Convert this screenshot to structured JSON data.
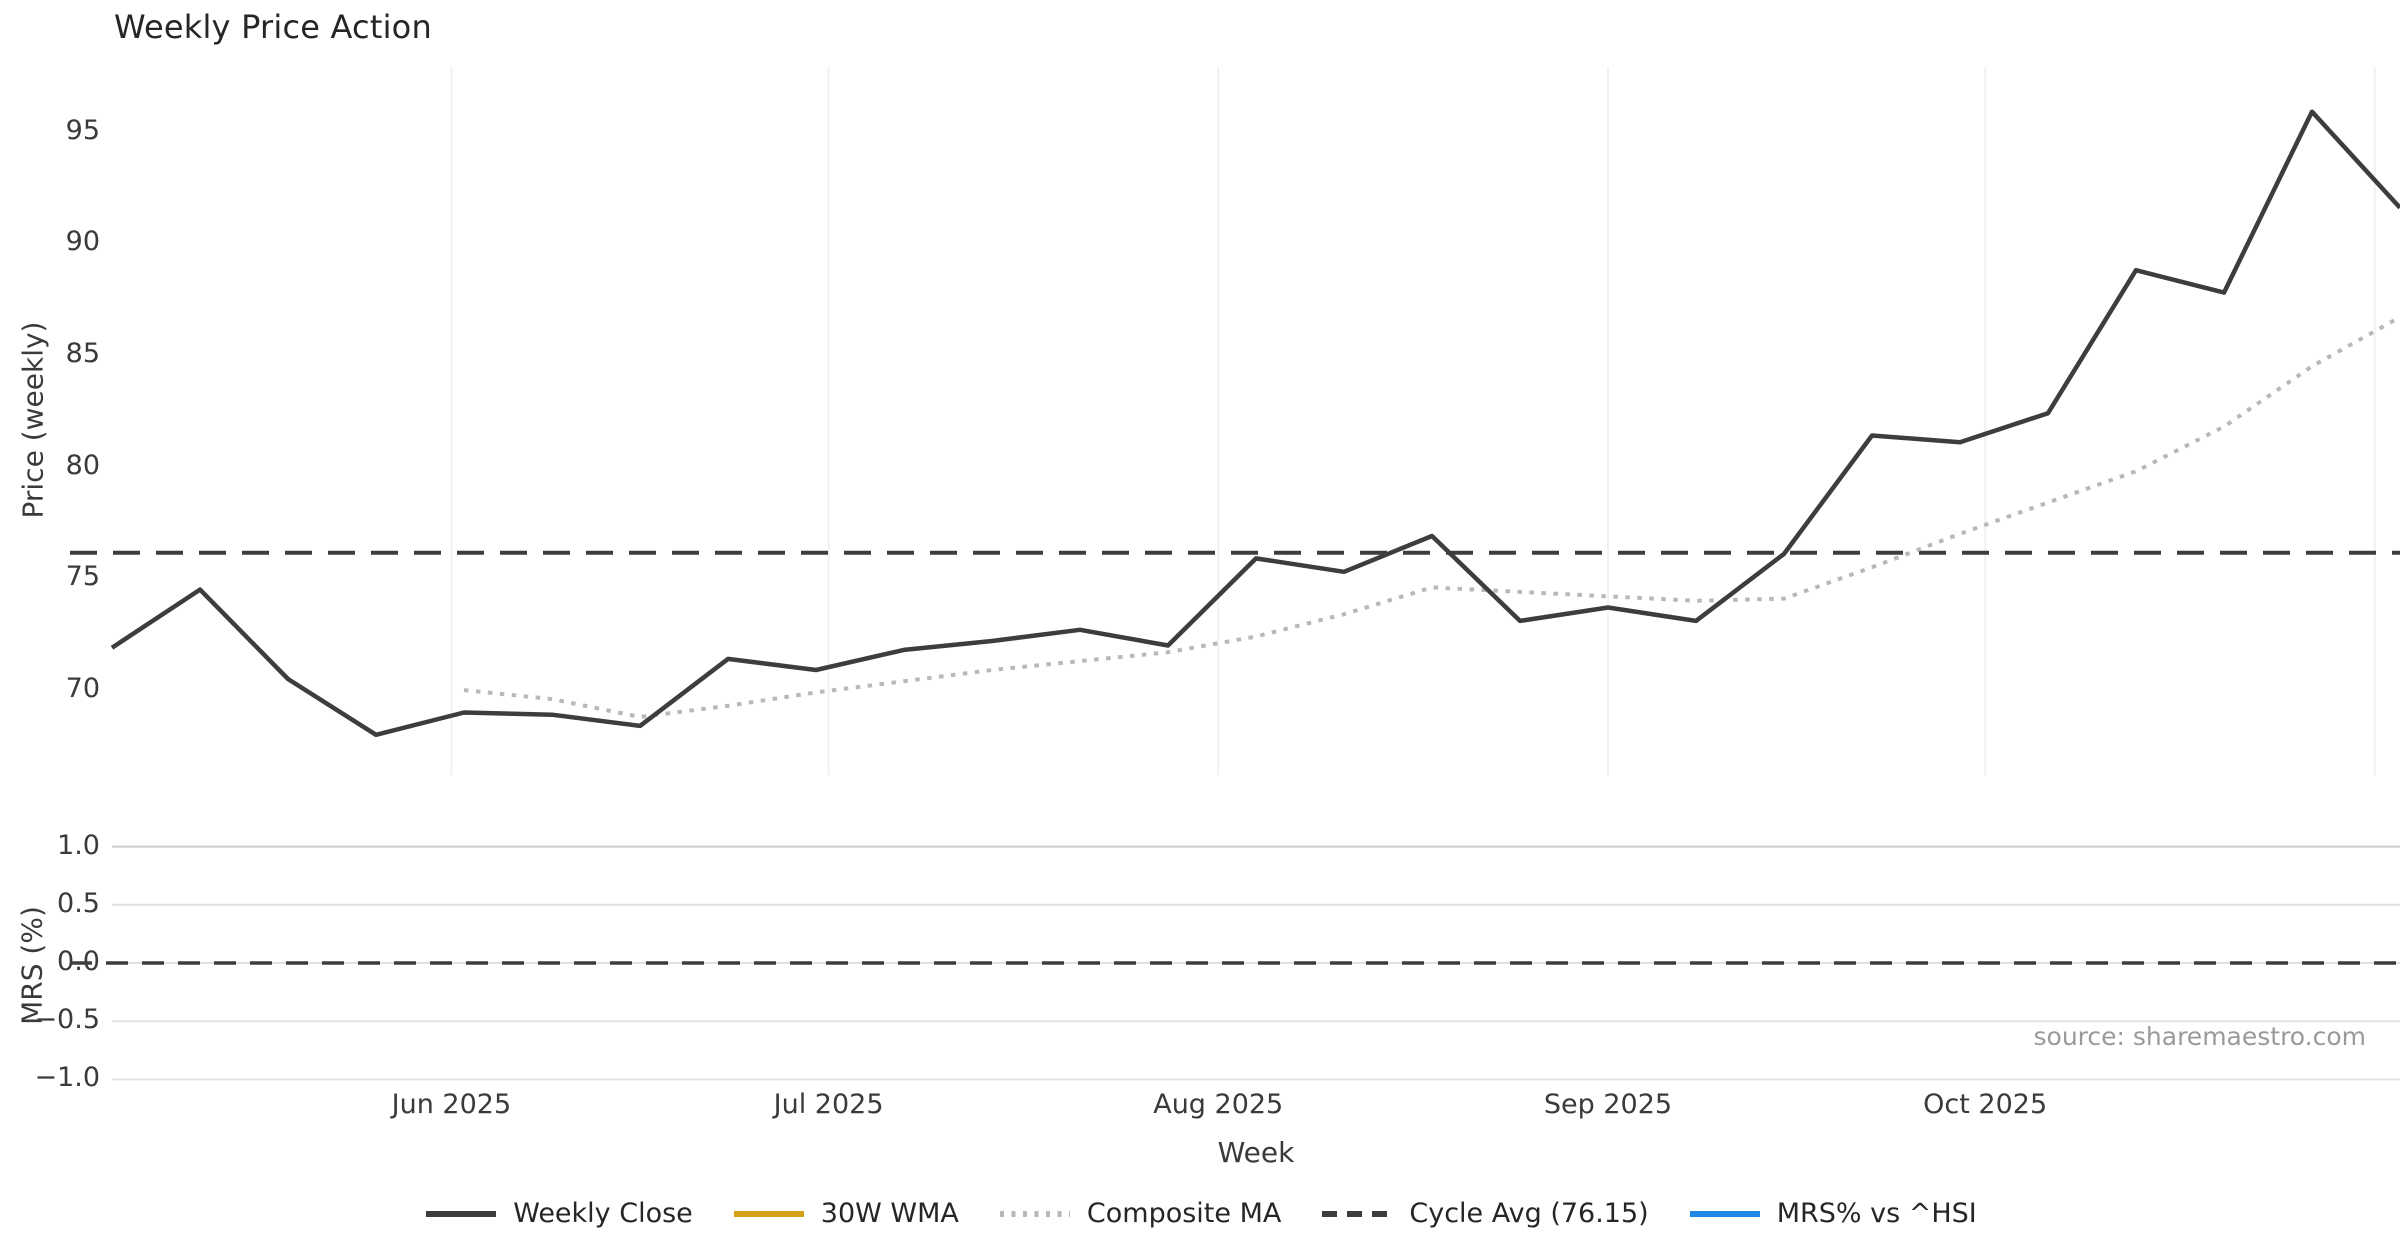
{
  "title": "Weekly Price Action",
  "source_note": "source: sharemaestro.com",
  "colors": {
    "weekly_close": "#3d3d3d",
    "wma_30w": "#d4a017",
    "composite_ma": "#b8b8b8",
    "cycle_avg": "#3d3d3d",
    "mrs_line": "#1e88e5",
    "grid_vertical": "#eef1f6",
    "grid_horizontal": "#dfe2e7",
    "grid_horizontal_top": "#c9ccd1",
    "zero_dash": "#3d3d3d",
    "title_text": "#262626",
    "tick_text": "#3a3a3a",
    "source_text": "#9a9a9a"
  },
  "chart_data": [
    {
      "type": "line",
      "panel": "price",
      "title": "Weekly Price Action",
      "ylabel": "Price (weekly)",
      "xlabel": "Week",
      "grid": "vertical-months-only",
      "ylim": [
        66.2,
        97.9
      ],
      "y_ticks": [
        "70",
        "75",
        "80",
        "85",
        "90",
        "95"
      ],
      "y_tick_values": [
        70,
        75,
        80,
        85,
        90,
        95
      ],
      "x_axis": {
        "unit": "weeks",
        "n_points": 27,
        "tick_labels": [
          {
            "label": "Jun 2025",
            "week": 3.857
          },
          {
            "label": "Jul 2025",
            "week": 8.143
          },
          {
            "label": "Aug 2025",
            "week": 12.571
          },
          {
            "label": "Sep 2025",
            "week": 17.0
          },
          {
            "label": "Oct 2025",
            "week": 21.286
          }
        ],
        "gridline_weeks": [
          3.857,
          8.143,
          12.571,
          17.0,
          21.286,
          25.714
        ]
      },
      "series": [
        {
          "name": "Weekly Close",
          "style": "solid",
          "color": "#3d3d3d",
          "values": [
            71.9,
            74.5,
            70.5,
            68.0,
            69.0,
            68.9,
            68.4,
            71.4,
            70.9,
            71.8,
            72.2,
            72.7,
            72.0,
            75.9,
            75.3,
            76.9,
            73.1,
            73.7,
            73.1,
            76.1,
            81.4,
            81.1,
            82.4,
            88.8,
            87.8,
            95.9,
            91.6
          ]
        },
        {
          "name": "30W WMA",
          "style": "solid",
          "color": "#d4a017",
          "values": []
        },
        {
          "name": "Composite MA",
          "style": "dotted",
          "color": "#b8b8b8",
          "values": [
            null,
            null,
            null,
            null,
            70.0,
            69.6,
            68.8,
            69.3,
            69.9,
            70.4,
            70.9,
            71.3,
            71.7,
            72.4,
            73.4,
            74.6,
            74.4,
            74.2,
            74.0,
            74.1,
            75.5,
            77.0,
            78.4,
            79.8,
            81.8,
            84.5,
            86.7
          ]
        },
        {
          "name": "Cycle Avg (76.15)",
          "style": "dashed",
          "color": "#3d3d3d",
          "constant": 76.15
        }
      ]
    },
    {
      "type": "line",
      "panel": "mrs",
      "ylabel": "MRS (%)",
      "ylim": [
        -1.074,
        1.074
      ],
      "y_ticks": [
        "1.0",
        "0.5",
        "0.0",
        "−0.5",
        "−1.0"
      ],
      "y_tick_values": [
        1.0,
        0.5,
        0.0,
        -0.5,
        -1.0
      ],
      "zero_line": 0.0,
      "series": [
        {
          "name": "MRS% vs ^HSI",
          "style": "solid",
          "color": "#1e88e5",
          "values": []
        }
      ]
    }
  ],
  "legend": {
    "items": [
      {
        "label": "Weekly Close",
        "color": "#3d3d3d",
        "dash": "solid"
      },
      {
        "label": "30W WMA",
        "color": "#d4a017",
        "dash": "solid"
      },
      {
        "label": "Composite MA",
        "color": "#b8b8b8",
        "dash": "dotted"
      },
      {
        "label": "Cycle Avg (76.15)",
        "color": "#3d3d3d",
        "dash": "dashed"
      },
      {
        "label": "MRS% vs ^HSI",
        "color": "#1e88e5",
        "dash": "solid"
      }
    ]
  },
  "axis_titles": {
    "price_y": "Price (weekly)",
    "mrs_y": "MRS (%)",
    "x": "Week"
  }
}
